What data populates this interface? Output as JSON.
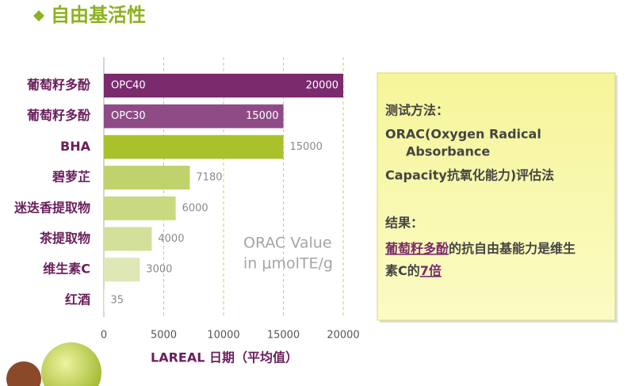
{
  "title": "自由基活性",
  "chart_data": {
    "type": "hbar",
    "categories": [
      "葡萄籽多酚",
      "葡萄籽多酚",
      "BHA",
      "碧萝芷",
      "迷迭香提取物",
      "茶提取物",
      "维生素C",
      "红酒"
    ],
    "bar_labels": [
      "OPC40",
      "OPC30",
      null,
      null,
      null,
      null,
      null,
      null
    ],
    "values": [
      20000,
      15000,
      15000,
      7180,
      6000,
      4000,
      3000,
      35
    ],
    "colors": [
      "#7b2a6e",
      "#8f4b86",
      "#a9c12b",
      "#c0d26b",
      "#c9d97f",
      "#d3e09a",
      "#dee7b6",
      "#e9efd2"
    ],
    "xlim": [
      0,
      20000
    ],
    "xticks": [
      0,
      5000,
      10000,
      15000,
      20000
    ],
    "xlabel": "LAREAL 日期（平均值）",
    "annotation": [
      "ORAC Value",
      "in μmolTE/g"
    ],
    "grid": true
  },
  "text_box": {
    "method_heading": "测试方法：",
    "method_lines": [
      "ORAC(Oxygen Radical",
      "Absorbance",
      "Capacity抗氧化能力)评估法"
    ],
    "result_heading": "结果：",
    "result_line1": [
      "葡萄籽多酚",
      "的抗自由基能力是维生"
    ],
    "result_line2": [
      "素C的",
      "7倍"
    ]
  }
}
